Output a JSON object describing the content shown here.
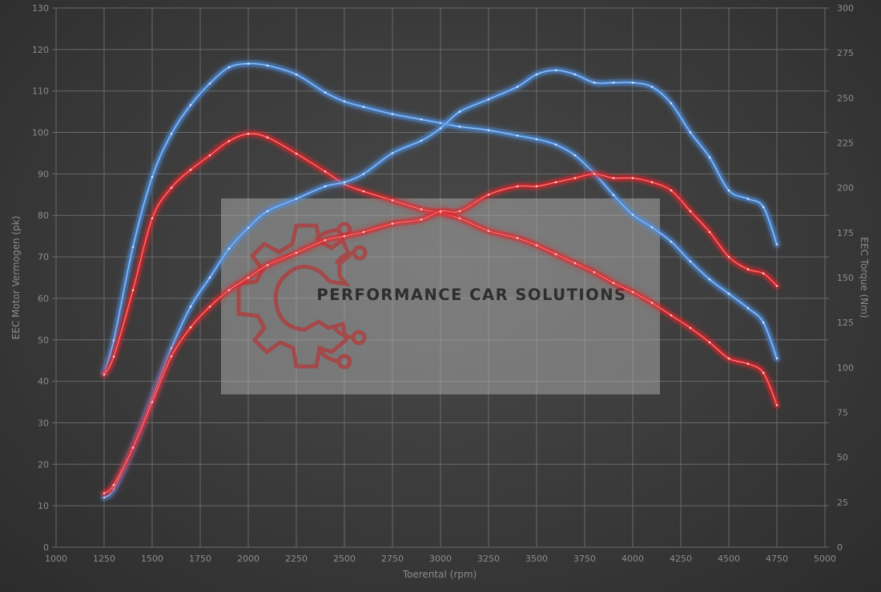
{
  "chart_data": {
    "type": "line",
    "xlabel": "Toerental (rpm)",
    "ylabel_left": "EEC Motor Vermogen (pk)",
    "ylabel_right": "EEC Torque (Nm)",
    "xlim": [
      1000,
      5000
    ],
    "ylim_left": [
      0,
      130
    ],
    "ylim_right": [
      0,
      300
    ],
    "x_ticks": [
      1000,
      1250,
      1500,
      1750,
      2000,
      2250,
      2500,
      2750,
      3000,
      3250,
      3500,
      3750,
      4000,
      4250,
      4500,
      4750,
      5000
    ],
    "y_ticks_left": [
      0,
      10,
      20,
      30,
      40,
      50,
      60,
      70,
      80,
      90,
      100,
      110,
      120,
      130
    ],
    "y_ticks_right": [
      0,
      25,
      50,
      75,
      100,
      125,
      150,
      175,
      200,
      225,
      250,
      275,
      300
    ],
    "grid": true,
    "colors": {
      "blue": "#4d8ee0",
      "red": "#e0262a"
    },
    "series": [
      {
        "color": "blue",
        "axis": "right",
        "quantity": "torque",
        "x": [
          1250,
          1300,
          1400,
          1500,
          1600,
          1700,
          1800,
          1900,
          2000,
          2100,
          2250,
          2400,
          2500,
          2600,
          2750,
          2900,
          3000,
          3100,
          3250,
          3400,
          3500,
          3600,
          3700,
          3800,
          3900,
          4000,
          4100,
          4200,
          4300,
          4400,
          4500,
          4600,
          4680,
          4750
        ],
        "y": [
          97,
          115,
          167,
          206,
          230,
          246,
          258,
          267,
          269,
          268,
          263,
          253,
          248,
          245,
          241,
          238,
          236,
          234,
          232,
          229,
          227,
          224,
          218,
          208,
          196,
          185,
          178,
          170,
          159,
          149,
          141,
          133,
          125,
          105
        ]
      },
      {
        "color": "red",
        "axis": "right",
        "quantity": "torque",
        "x": [
          1250,
          1300,
          1400,
          1500,
          1600,
          1700,
          1800,
          1900,
          2000,
          2100,
          2250,
          2400,
          2500,
          2600,
          2750,
          2900,
          3000,
          3100,
          3250,
          3400,
          3500,
          3600,
          3700,
          3800,
          3900,
          4000,
          4100,
          4200,
          4300,
          4400,
          4500,
          4600,
          4680,
          4750
        ],
        "y": [
          96,
          106,
          143,
          183,
          200,
          210,
          218,
          226,
          230,
          228,
          219,
          209,
          202,
          198,
          193,
          188,
          186,
          183,
          176,
          172,
          168,
          163,
          158,
          153,
          147,
          142,
          136,
          129,
          122,
          114,
          105,
          102,
          97,
          79
        ]
      },
      {
        "color": "blue",
        "axis": "left",
        "quantity": "power",
        "x": [
          1250,
          1300,
          1400,
          1500,
          1600,
          1700,
          1800,
          1900,
          2000,
          2100,
          2250,
          2400,
          2500,
          2600,
          2750,
          2900,
          3000,
          3100,
          3250,
          3400,
          3500,
          3600,
          3700,
          3800,
          3900,
          4000,
          4100,
          4200,
          4300,
          4400,
          4500,
          4600,
          4680,
          4750
        ],
        "y": [
          12,
          14,
          24,
          36,
          48,
          58,
          65,
          72,
          77,
          81,
          84,
          87,
          88,
          90,
          95,
          98,
          101,
          105,
          108,
          111,
          114,
          115,
          114,
          112,
          112,
          112,
          111,
          107,
          100,
          94,
          86,
          84,
          82,
          73
        ]
      },
      {
        "color": "red",
        "axis": "left",
        "quantity": "power",
        "x": [
          1250,
          1300,
          1400,
          1500,
          1600,
          1700,
          1800,
          1900,
          2000,
          2100,
          2250,
          2400,
          2500,
          2600,
          2750,
          2900,
          3000,
          3100,
          3250,
          3400,
          3500,
          3600,
          3700,
          3800,
          3900,
          4000,
          4100,
          4200,
          4300,
          4400,
          4500,
          4600,
          4680,
          4750
        ],
        "y": [
          13,
          15,
          24,
          35,
          46,
          53,
          58,
          62,
          65,
          68,
          71,
          74,
          75,
          76,
          78,
          79,
          81,
          81,
          85,
          87,
          87,
          88,
          89,
          90,
          89,
          89,
          88,
          86,
          81,
          76,
          70,
          67,
          66,
          63
        ]
      }
    ]
  },
  "watermark": {
    "text": "PERFORMANCE CAR SOLUTIONS"
  }
}
